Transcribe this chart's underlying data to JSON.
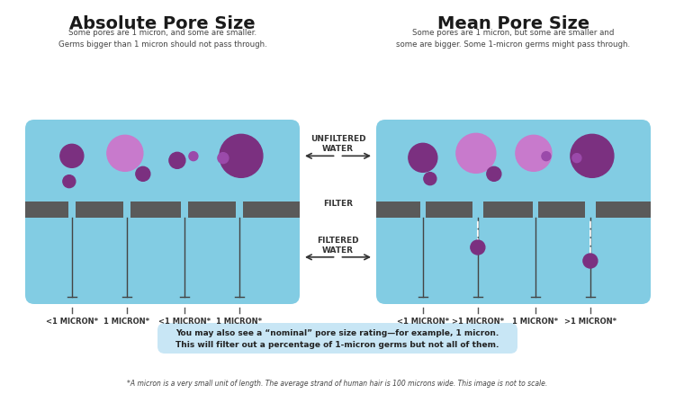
{
  "bg_color": "#ffffff",
  "panel_color": "#82cce3",
  "filter_color": "#5a5a5a",
  "title_left": "Absolute Pore Size",
  "title_right": "Mean Pore Size",
  "subtitle_left": "Some pores are 1 micron, and some are smaller.\nGerms bigger than 1 micron should not pass through.",
  "subtitle_right": "Some pores are 1 micron, but some are smaller and\nsome are bigger. Some 1-micron germs might pass through.",
  "label_unfiltered": "UNFILTERED\nWATER",
  "label_filter": "FILTER",
  "label_filtered": "FILTERED\nWATER",
  "labels_left": [
    "<1 MICRON*",
    "1 MICRON*",
    "<1 MICRON*",
    "1 MICRON*"
  ],
  "labels_right": [
    "<1 MICRON*",
    ">1 MICRON*",
    "1 MICRON*",
    ">1 MICRON*"
  ],
  "footnote_box": "You may also see a “nominal” pore size rating—for example, 1 micron.\nThis will filter out a percentage of 1-micron germs but not all of them.",
  "footnote": "*A micron is a very small unit of length. The average strand of human hair is 100 microns wide. This image is not to scale.",
  "dark_purple": "#7b3080",
  "light_purple": "#c87acc",
  "mid_purple": "#9b4aaa",
  "arrow_color": "#333333",
  "stem_color": "#444444",
  "label_color": "#333333",
  "title_color": "#1a1a1a"
}
